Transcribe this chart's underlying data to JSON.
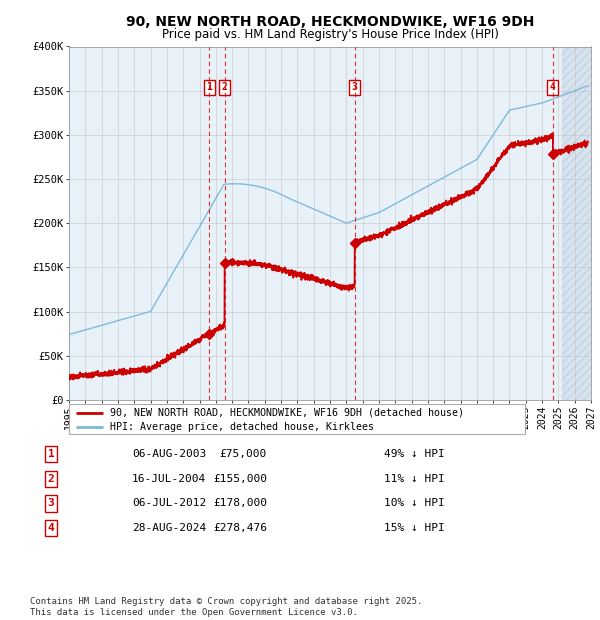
{
  "title": "90, NEW NORTH ROAD, HECKMONDWIKE, WF16 9DH",
  "subtitle": "Price paid vs. HM Land Registry's House Price Index (HPI)",
  "hpi_color": "#7ab8d9",
  "price_color": "#cc0000",
  "plot_bg": "#e8f0f8",
  "grid_color": "#bbbbbb",
  "xmin": 1995.0,
  "xmax": 2027.0,
  "ymin": 0,
  "ymax": 400000,
  "yticks": [
    0,
    50000,
    100000,
    150000,
    200000,
    250000,
    300000,
    350000,
    400000
  ],
  "ytick_labels": [
    "£0",
    "£50K",
    "£100K",
    "£150K",
    "£200K",
    "£250K",
    "£300K",
    "£350K",
    "£400K"
  ],
  "xtick_years": [
    1995,
    1996,
    1997,
    1998,
    1999,
    2000,
    2001,
    2002,
    2003,
    2004,
    2005,
    2006,
    2007,
    2008,
    2009,
    2010,
    2011,
    2012,
    2013,
    2014,
    2015,
    2016,
    2017,
    2018,
    2019,
    2020,
    2021,
    2022,
    2023,
    2024,
    2025,
    2026,
    2027
  ],
  "transactions": [
    {
      "num": 1,
      "year": 2003.597,
      "price": 75000,
      "label": "06-AUG-2003",
      "pct": "49%",
      "dir": "↓"
    },
    {
      "num": 2,
      "year": 2004.539,
      "price": 155000,
      "label": "16-JUL-2004",
      "pct": "11%",
      "dir": "↓"
    },
    {
      "num": 3,
      "year": 2012.512,
      "price": 178000,
      "label": "06-JUL-2012",
      "pct": "10%",
      "dir": "↓"
    },
    {
      "num": 4,
      "year": 2024.66,
      "price": 278476,
      "label": "28-AUG-2024",
      "pct": "15%",
      "dir": "↓"
    }
  ],
  "legend_line1": "90, NEW NORTH ROAD, HECKMONDWIKE, WF16 9DH (detached house)",
  "legend_line2": "HPI: Average price, detached house, Kirklees",
  "footer": "Contains HM Land Registry data © Crown copyright and database right 2025.\nThis data is licensed under the Open Government Licence v3.0.",
  "future_x": 2025.25
}
